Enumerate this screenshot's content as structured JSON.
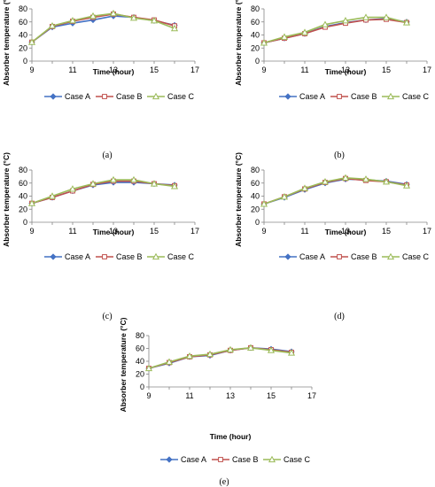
{
  "chart_data": [
    {
      "type": "line",
      "panel_label": "(a)",
      "xlabel": "Time (hour)",
      "ylabel": "Absorber temperature (°C)",
      "xlim": [
        9,
        17
      ],
      "ylim": [
        0,
        80
      ],
      "x_ticks": [
        9,
        11,
        13,
        15,
        17
      ],
      "y_ticks": [
        0,
        20,
        40,
        60,
        80
      ],
      "x": [
        9,
        10,
        11,
        12,
        13,
        14,
        15,
        16
      ],
      "legend_position": "bottom",
      "series": [
        {
          "name": "Case A",
          "color": "#4472C4",
          "marker": "diamond",
          "values": [
            29,
            52,
            58,
            63,
            69,
            67,
            62,
            55
          ]
        },
        {
          "name": "Case B",
          "color": "#C0504D",
          "marker": "square",
          "values": [
            29,
            53,
            61,
            67,
            72,
            67,
            63,
            54
          ]
        },
        {
          "name": "Case C",
          "color": "#9BBB59",
          "marker": "triangle",
          "values": [
            29,
            54,
            62,
            69,
            73,
            66,
            62,
            50
          ]
        }
      ]
    },
    {
      "type": "line",
      "panel_label": "(b)",
      "xlabel": "Time (hour)",
      "ylabel": "Absorber temperature (°C)",
      "xlim": [
        9,
        17
      ],
      "ylim": [
        0,
        80
      ],
      "x_ticks": [
        9,
        11,
        13,
        15,
        17
      ],
      "y_ticks": [
        0,
        20,
        40,
        60,
        80
      ],
      "x": [
        9,
        10,
        11,
        12,
        13,
        14,
        15,
        16
      ],
      "legend_position": "bottom",
      "series": [
        {
          "name": "Case A",
          "color": "#4472C4",
          "marker": "diamond",
          "values": [
            28,
            35,
            42,
            53,
            59,
            63,
            65,
            60
          ]
        },
        {
          "name": "Case B",
          "color": "#C0504D",
          "marker": "square",
          "values": [
            28,
            35,
            42,
            52,
            58,
            63,
            64,
            59
          ]
        },
        {
          "name": "Case C",
          "color": "#9BBB59",
          "marker": "triangle",
          "values": [
            28,
            37,
            44,
            56,
            62,
            67,
            67,
            59
          ]
        }
      ]
    },
    {
      "type": "line",
      "panel_label": "(c)",
      "xlabel": "Time (hour)",
      "ylabel": "Absorber temperature (°C)",
      "xlim": [
        9,
        17
      ],
      "ylim": [
        0,
        80
      ],
      "x_ticks": [
        9,
        11,
        13,
        15,
        17
      ],
      "y_ticks": [
        0,
        20,
        40,
        60,
        80
      ],
      "x": [
        9,
        10,
        11,
        12,
        13,
        14,
        15,
        16
      ],
      "legend_position": "bottom",
      "series": [
        {
          "name": "Case A",
          "color": "#4472C4",
          "marker": "diamond",
          "values": [
            29,
            38,
            48,
            57,
            61,
            61,
            59,
            57
          ]
        },
        {
          "name": "Case B",
          "color": "#C0504D",
          "marker": "square",
          "values": [
            29,
            38,
            48,
            58,
            63,
            63,
            59,
            56
          ]
        },
        {
          "name": "Case C",
          "color": "#9BBB59",
          "marker": "triangle",
          "values": [
            29,
            40,
            51,
            59,
            65,
            65,
            59,
            55
          ]
        }
      ]
    },
    {
      "type": "line",
      "panel_label": "(d)",
      "xlabel": "Time (hour)",
      "ylabel": "Absorber temperature (°C)",
      "xlim": [
        9,
        17
      ],
      "ylim": [
        0,
        80
      ],
      "x_ticks": [
        9,
        11,
        13,
        15,
        17
      ],
      "y_ticks": [
        0,
        20,
        40,
        60,
        80
      ],
      "x": [
        9,
        10,
        11,
        12,
        13,
        14,
        15,
        16
      ],
      "legend_position": "bottom",
      "series": [
        {
          "name": "Case A",
          "color": "#4472C4",
          "marker": "diamond",
          "values": [
            28,
            38,
            50,
            60,
            66,
            65,
            63,
            58
          ]
        },
        {
          "name": "Case B",
          "color": "#C0504D",
          "marker": "square",
          "values": [
            28,
            39,
            51,
            61,
            67,
            64,
            62,
            57
          ]
        },
        {
          "name": "Case C",
          "color": "#9BBB59",
          "marker": "triangle",
          "values": [
            28,
            39,
            52,
            62,
            68,
            66,
            62,
            56
          ]
        }
      ]
    },
    {
      "type": "line",
      "panel_label": "(e)",
      "xlabel": "Time (hour)",
      "ylabel": "Absorber temperature (°C)",
      "xlim": [
        9,
        17
      ],
      "ylim": [
        0,
        80
      ],
      "x_ticks": [
        9,
        11,
        13,
        15,
        17
      ],
      "y_ticks": [
        0,
        20,
        40,
        60,
        80
      ],
      "x": [
        9,
        10,
        11,
        12,
        13,
        14,
        15,
        16
      ],
      "legend_position": "bottom",
      "series": [
        {
          "name": "Case A",
          "color": "#4472C4",
          "marker": "diamond",
          "values": [
            29,
            37,
            47,
            49,
            57,
            61,
            59,
            55
          ]
        },
        {
          "name": "Case B",
          "color": "#C0504D",
          "marker": "square",
          "values": [
            29,
            38,
            47,
            50,
            57,
            61,
            58,
            54
          ]
        },
        {
          "name": "Case C",
          "color": "#9BBB59",
          "marker": "triangle",
          "values": [
            29,
            39,
            48,
            51,
            58,
            61,
            57,
            53
          ]
        }
      ]
    }
  ]
}
